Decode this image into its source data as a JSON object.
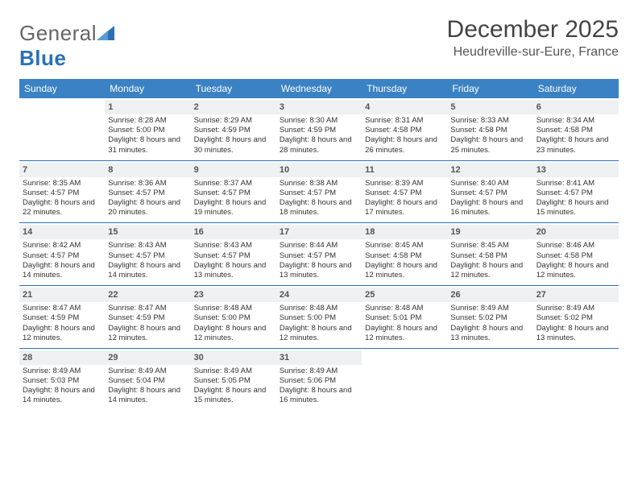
{
  "brand": {
    "part1": "General",
    "part2": "Blue"
  },
  "title": "December 2025",
  "location": "Heudreville-sur-Eure, France",
  "colors": {
    "header_bg": "#3b82c4",
    "rule": "#2a71b8",
    "daynum_bg": "#eef0f2"
  },
  "day_headers": [
    "Sunday",
    "Monday",
    "Tuesday",
    "Wednesday",
    "Thursday",
    "Friday",
    "Saturday"
  ],
  "weeks": [
    [
      {
        "n": "",
        "sr": "",
        "ss": "",
        "dl": ""
      },
      {
        "n": "1",
        "sr": "Sunrise: 8:28 AM",
        "ss": "Sunset: 5:00 PM",
        "dl": "Daylight: 8 hours and 31 minutes."
      },
      {
        "n": "2",
        "sr": "Sunrise: 8:29 AM",
        "ss": "Sunset: 4:59 PM",
        "dl": "Daylight: 8 hours and 30 minutes."
      },
      {
        "n": "3",
        "sr": "Sunrise: 8:30 AM",
        "ss": "Sunset: 4:59 PM",
        "dl": "Daylight: 8 hours and 28 minutes."
      },
      {
        "n": "4",
        "sr": "Sunrise: 8:31 AM",
        "ss": "Sunset: 4:58 PM",
        "dl": "Daylight: 8 hours and 26 minutes."
      },
      {
        "n": "5",
        "sr": "Sunrise: 8:33 AM",
        "ss": "Sunset: 4:58 PM",
        "dl": "Daylight: 8 hours and 25 minutes."
      },
      {
        "n": "6",
        "sr": "Sunrise: 8:34 AM",
        "ss": "Sunset: 4:58 PM",
        "dl": "Daylight: 8 hours and 23 minutes."
      }
    ],
    [
      {
        "n": "7",
        "sr": "Sunrise: 8:35 AM",
        "ss": "Sunset: 4:57 PM",
        "dl": "Daylight: 8 hours and 22 minutes."
      },
      {
        "n": "8",
        "sr": "Sunrise: 8:36 AM",
        "ss": "Sunset: 4:57 PM",
        "dl": "Daylight: 8 hours and 20 minutes."
      },
      {
        "n": "9",
        "sr": "Sunrise: 8:37 AM",
        "ss": "Sunset: 4:57 PM",
        "dl": "Daylight: 8 hours and 19 minutes."
      },
      {
        "n": "10",
        "sr": "Sunrise: 8:38 AM",
        "ss": "Sunset: 4:57 PM",
        "dl": "Daylight: 8 hours and 18 minutes."
      },
      {
        "n": "11",
        "sr": "Sunrise: 8:39 AM",
        "ss": "Sunset: 4:57 PM",
        "dl": "Daylight: 8 hours and 17 minutes."
      },
      {
        "n": "12",
        "sr": "Sunrise: 8:40 AM",
        "ss": "Sunset: 4:57 PM",
        "dl": "Daylight: 8 hours and 16 minutes."
      },
      {
        "n": "13",
        "sr": "Sunrise: 8:41 AM",
        "ss": "Sunset: 4:57 PM",
        "dl": "Daylight: 8 hours and 15 minutes."
      }
    ],
    [
      {
        "n": "14",
        "sr": "Sunrise: 8:42 AM",
        "ss": "Sunset: 4:57 PM",
        "dl": "Daylight: 8 hours and 14 minutes."
      },
      {
        "n": "15",
        "sr": "Sunrise: 8:43 AM",
        "ss": "Sunset: 4:57 PM",
        "dl": "Daylight: 8 hours and 14 minutes."
      },
      {
        "n": "16",
        "sr": "Sunrise: 8:43 AM",
        "ss": "Sunset: 4:57 PM",
        "dl": "Daylight: 8 hours and 13 minutes."
      },
      {
        "n": "17",
        "sr": "Sunrise: 8:44 AM",
        "ss": "Sunset: 4:57 PM",
        "dl": "Daylight: 8 hours and 13 minutes."
      },
      {
        "n": "18",
        "sr": "Sunrise: 8:45 AM",
        "ss": "Sunset: 4:58 PM",
        "dl": "Daylight: 8 hours and 12 minutes."
      },
      {
        "n": "19",
        "sr": "Sunrise: 8:45 AM",
        "ss": "Sunset: 4:58 PM",
        "dl": "Daylight: 8 hours and 12 minutes."
      },
      {
        "n": "20",
        "sr": "Sunrise: 8:46 AM",
        "ss": "Sunset: 4:58 PM",
        "dl": "Daylight: 8 hours and 12 minutes."
      }
    ],
    [
      {
        "n": "21",
        "sr": "Sunrise: 8:47 AM",
        "ss": "Sunset: 4:59 PM",
        "dl": "Daylight: 8 hours and 12 minutes."
      },
      {
        "n": "22",
        "sr": "Sunrise: 8:47 AM",
        "ss": "Sunset: 4:59 PM",
        "dl": "Daylight: 8 hours and 12 minutes."
      },
      {
        "n": "23",
        "sr": "Sunrise: 8:48 AM",
        "ss": "Sunset: 5:00 PM",
        "dl": "Daylight: 8 hours and 12 minutes."
      },
      {
        "n": "24",
        "sr": "Sunrise: 8:48 AM",
        "ss": "Sunset: 5:00 PM",
        "dl": "Daylight: 8 hours and 12 minutes."
      },
      {
        "n": "25",
        "sr": "Sunrise: 8:48 AM",
        "ss": "Sunset: 5:01 PM",
        "dl": "Daylight: 8 hours and 12 minutes."
      },
      {
        "n": "26",
        "sr": "Sunrise: 8:49 AM",
        "ss": "Sunset: 5:02 PM",
        "dl": "Daylight: 8 hours and 13 minutes."
      },
      {
        "n": "27",
        "sr": "Sunrise: 8:49 AM",
        "ss": "Sunset: 5:02 PM",
        "dl": "Daylight: 8 hours and 13 minutes."
      }
    ],
    [
      {
        "n": "28",
        "sr": "Sunrise: 8:49 AM",
        "ss": "Sunset: 5:03 PM",
        "dl": "Daylight: 8 hours and 14 minutes."
      },
      {
        "n": "29",
        "sr": "Sunrise: 8:49 AM",
        "ss": "Sunset: 5:04 PM",
        "dl": "Daylight: 8 hours and 14 minutes."
      },
      {
        "n": "30",
        "sr": "Sunrise: 8:49 AM",
        "ss": "Sunset: 5:05 PM",
        "dl": "Daylight: 8 hours and 15 minutes."
      },
      {
        "n": "31",
        "sr": "Sunrise: 8:49 AM",
        "ss": "Sunset: 5:06 PM",
        "dl": "Daylight: 8 hours and 16 minutes."
      },
      {
        "n": "",
        "sr": "",
        "ss": "",
        "dl": ""
      },
      {
        "n": "",
        "sr": "",
        "ss": "",
        "dl": ""
      },
      {
        "n": "",
        "sr": "",
        "ss": "",
        "dl": ""
      }
    ]
  ]
}
